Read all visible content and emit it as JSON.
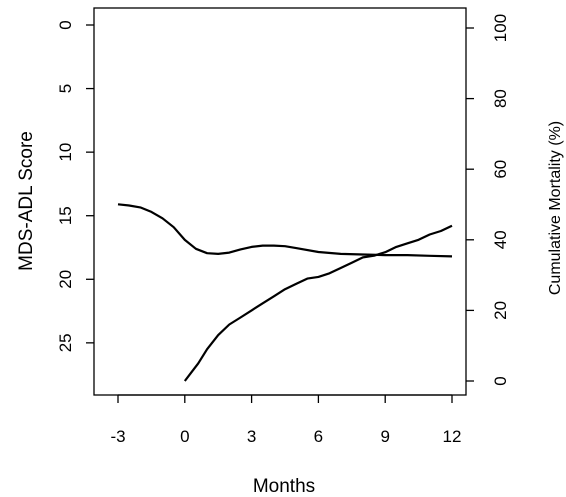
{
  "chart_data": {
    "type": "line",
    "title": "",
    "xlabel": "Months",
    "ylabel_left": "MDS-ADL Score",
    "ylabel_right": "Cumulative Mortality (%)",
    "xlim": [
      -3.0,
      12.0
    ],
    "ylim_left": [
      0,
      28
    ],
    "ylim_left_inverted": true,
    "ylim_right": [
      0,
      100
    ],
    "x_ticks": [
      -3,
      0,
      3,
      6,
      9,
      12
    ],
    "x_tick_labels": [
      "-3",
      "0",
      "3",
      "6",
      "9",
      "12"
    ],
    "y_left_ticks": [
      0,
      5,
      10,
      15,
      20,
      25
    ],
    "y_left_tick_labels": [
      "0",
      "5",
      "10",
      "15",
      "20",
      "25"
    ],
    "y_right_ticks": [
      0,
      20,
      40,
      60,
      80,
      100
    ],
    "y_right_tick_labels": [
      "0",
      "20",
      "40",
      "60",
      "80",
      "100"
    ],
    "grid": false,
    "legend": "none",
    "line_color": "#000000",
    "series": [
      {
        "axis": "left",
        "x": [
          -3.0,
          -2.5,
          -2.0,
          -1.5,
          -1.0,
          -0.5,
          0.0,
          0.5,
          1.0,
          1.5,
          2.0,
          2.5,
          3.0,
          3.5,
          4.0,
          4.5,
          5.0,
          6.0,
          7.0,
          8.0,
          9.0,
          10.0,
          11.0,
          12.0
        ],
        "values": [
          14.1,
          14.2,
          14.35,
          14.7,
          15.2,
          15.9,
          16.9,
          17.6,
          17.95,
          18.0,
          17.9,
          17.65,
          17.45,
          17.35,
          17.35,
          17.4,
          17.55,
          17.85,
          18.0,
          18.05,
          18.1,
          18.1,
          18.15,
          18.2
        ]
      },
      {
        "axis": "right",
        "x": [
          0.0,
          0.3,
          0.6,
          1.0,
          1.5,
          2.0,
          2.5,
          3.0,
          3.5,
          4.0,
          4.5,
          5.0,
          5.5,
          6.0,
          6.5,
          7.0,
          7.5,
          8.0,
          8.5,
          9.0,
          9.5,
          10.0,
          10.5,
          11.0,
          11.5,
          12.0
        ],
        "values": [
          0,
          2.5,
          5,
          9,
          13,
          16,
          18,
          20,
          22,
          24,
          26,
          27.5,
          29,
          29.5,
          30.5,
          32,
          33.5,
          35,
          35.5,
          36.5,
          38,
          39,
          40,
          41.5,
          42.5,
          44
        ]
      }
    ]
  }
}
